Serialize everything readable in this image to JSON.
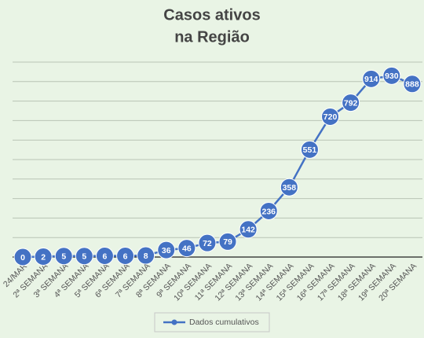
{
  "chart_data": {
    "type": "line",
    "title": [
      "Casos ativos",
      "na Região"
    ],
    "categories": [
      "24/MAR",
      "2ª SEMANA",
      "3ª SEMANA",
      "4ª SEMANA",
      "5ª SEMANA",
      "6ª SEMANA",
      "7ª SEMANA",
      "8ª SEMANA",
      "9ª SEMANA",
      "10ª SEMANA",
      "11ª SEMANA",
      "12ª SEMANA",
      "13ª SEMANA",
      "14ª SEMANA",
      "15ª SEMANA",
      "16ª SEMANA",
      "17ª SEMANA",
      "18ª SEMANA",
      "19ª SEMANA",
      "20ª SEMANA"
    ],
    "series": [
      {
        "name": "Dados cumulativos",
        "color": "#4472c4",
        "values": [
          0,
          2,
          5,
          5,
          6,
          6,
          8,
          36,
          46,
          72,
          79,
          142,
          236,
          358,
          551,
          720,
          792,
          914,
          930,
          888
        ]
      }
    ],
    "ylim": [
      0,
      1000
    ],
    "yticks": [
      0,
      100,
      200,
      300,
      400,
      500,
      600,
      700,
      800,
      900,
      1000
    ],
    "grid": true,
    "data_labels": true,
    "legend": "bottom"
  }
}
